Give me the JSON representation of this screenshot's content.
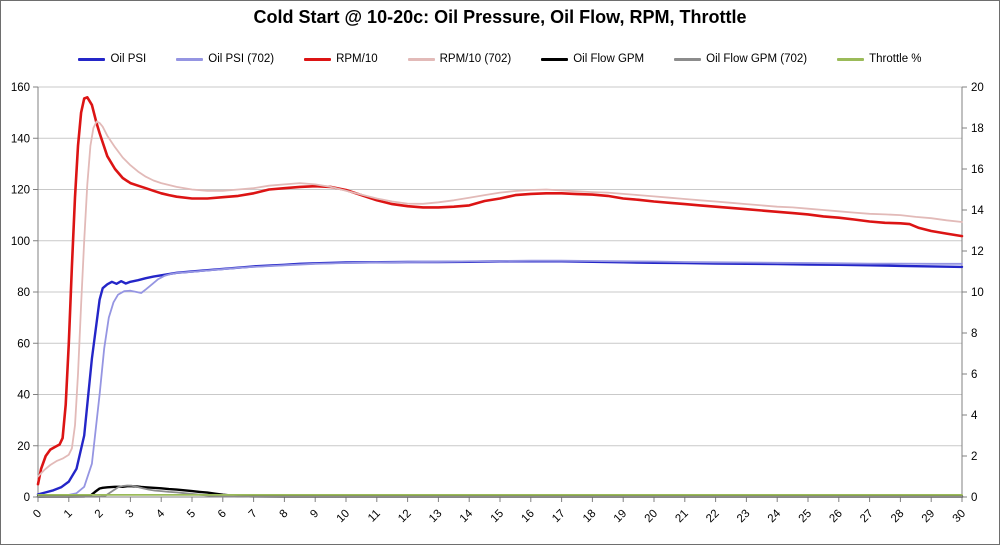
{
  "title": "Cold Start @ 10-20c: Oil Pressure, Oil Flow, RPM, Throttle",
  "colors": {
    "background": "#ffffff",
    "border": "#6e6e6e",
    "grid": "#c9c9c9",
    "axis": "#808080",
    "text": "#000000"
  },
  "chart_data": {
    "type": "line",
    "title": "Cold Start @ 10-20c: Oil Pressure, Oil Flow, RPM, Throttle",
    "legend_position": "top",
    "grid": true,
    "axes": {
      "x": {
        "min": 0,
        "max": 30,
        "step": 1,
        "label_rotation": -45
      },
      "y_left": {
        "min": 0,
        "max": 160,
        "step": 20
      },
      "y_right": {
        "min": 0,
        "max": 20,
        "step": 2
      }
    },
    "series": [
      {
        "name": "Oil PSI",
        "color": "#2426c8",
        "axis": "left",
        "width": 2.4,
        "x": [
          0,
          0.25,
          0.5,
          0.75,
          1,
          1.25,
          1.5,
          1.75,
          2,
          2.1,
          2.25,
          2.4,
          2.55,
          2.7,
          2.85,
          3,
          3.25,
          3.5,
          3.75,
          4,
          4.5,
          5,
          5.5,
          6,
          6.5,
          7,
          7.5,
          8,
          8.5,
          9,
          10,
          11,
          12,
          13,
          14,
          15,
          16,
          17,
          18,
          19,
          20,
          21,
          22,
          23,
          24,
          25,
          26,
          27,
          28,
          29,
          30
        ],
        "y": [
          1,
          1.8,
          2.6,
          3.8,
          6,
          11,
          24,
          54,
          77,
          81.5,
          83,
          84,
          83.2,
          84.2,
          83.3,
          84,
          84.6,
          85.4,
          86,
          86.5,
          87.5,
          88,
          88.5,
          89,
          89.5,
          90,
          90.3,
          90.6,
          91,
          91.2,
          91.5,
          91.6,
          91.7,
          91.7,
          91.8,
          92,
          92,
          92,
          91.8,
          91.6,
          91.4,
          91.3,
          91.1,
          91,
          90.9,
          90.7,
          90.6,
          90.4,
          90.2,
          90,
          89.8
        ]
      },
      {
        "name": "Oil PSI (702)",
        "color": "#9595e2",
        "axis": "left",
        "width": 1.8,
        "x": [
          0,
          0.5,
          1,
          1.25,
          1.5,
          1.75,
          2,
          2.15,
          2.3,
          2.45,
          2.6,
          2.8,
          3,
          3.2,
          3.35,
          3.5,
          3.7,
          3.9,
          4.1,
          4.3,
          4.5,
          5,
          5.5,
          6,
          6.5,
          7,
          8,
          9,
          10,
          11,
          12,
          13,
          14,
          15,
          16,
          17,
          18,
          19,
          20,
          21,
          22,
          23,
          24,
          25,
          26,
          27,
          28,
          29,
          30
        ],
        "y": [
          0,
          0.3,
          0.8,
          1.5,
          4,
          13,
          40,
          58,
          70,
          76,
          79,
          80.3,
          80.5,
          80,
          79.6,
          81,
          83,
          85,
          86.3,
          87,
          87.4,
          87.9,
          88.4,
          88.9,
          89.4,
          89.8,
          90.4,
          91,
          91.3,
          91.5,
          91.7,
          91.8,
          92,
          92.1,
          92.2,
          92.2,
          92.1,
          92,
          91.9,
          91.7,
          91.6,
          91.5,
          91.4,
          91.3,
          91.2,
          91.1,
          91.1,
          91,
          91
        ]
      },
      {
        "name": "RPM/10",
        "color": "#dc1414",
        "axis": "left",
        "width": 2.6,
        "x": [
          0,
          0.1,
          0.25,
          0.4,
          0.55,
          0.7,
          0.8,
          0.9,
          1,
          1.1,
          1.2,
          1.3,
          1.4,
          1.5,
          1.6,
          1.75,
          1.9,
          2,
          2.25,
          2.5,
          2.75,
          3,
          3.25,
          3.5,
          3.75,
          4,
          4.25,
          4.5,
          5,
          5.5,
          6,
          6.5,
          7,
          7.5,
          8,
          8.5,
          9,
          9.5,
          10,
          10.5,
          11,
          11.5,
          12,
          12.5,
          13,
          13.5,
          14,
          14.5,
          15,
          15.5,
          16,
          16.5,
          17,
          17.5,
          18,
          18.5,
          19,
          19.5,
          20,
          20.5,
          21,
          21.5,
          22,
          22.5,
          23,
          23.5,
          24,
          24.5,
          25,
          25.5,
          26,
          26.5,
          27,
          27.5,
          28,
          28.3,
          28.6,
          29,
          29.5,
          30
        ],
        "y": [
          5,
          11,
          16,
          18.5,
          19.5,
          20.5,
          23,
          36,
          60,
          90,
          117,
          137,
          150,
          155.5,
          156,
          153,
          146,
          142,
          133,
          128,
          124.5,
          122.5,
          121.5,
          120.5,
          119.5,
          118.5,
          117.8,
          117.2,
          116.5,
          116.5,
          117,
          117.5,
          118.5,
          120,
          120.5,
          121,
          121.3,
          121,
          119.8,
          117.8,
          115.8,
          114.3,
          113.5,
          113,
          113,
          113.3,
          113.8,
          115.5,
          116.5,
          117.8,
          118.3,
          118.5,
          118.5,
          118.2,
          118,
          117.5,
          116.5,
          116,
          115.3,
          114.8,
          114.3,
          113.8,
          113.3,
          112.8,
          112.3,
          111.8,
          111.3,
          110.8,
          110.3,
          109.5,
          109,
          108.3,
          107.5,
          107,
          106.8,
          106.5,
          105,
          103.8,
          102.8,
          101.8
        ]
      },
      {
        "name": "RPM/10 (702)",
        "color": "#e2bab8",
        "axis": "left",
        "width": 1.8,
        "x": [
          0,
          0.2,
          0.4,
          0.6,
          0.8,
          1,
          1.1,
          1.2,
          1.3,
          1.4,
          1.5,
          1.6,
          1.7,
          1.8,
          1.9,
          2,
          2.1,
          2.25,
          2.5,
          2.75,
          3,
          3.25,
          3.5,
          3.75,
          4,
          4.5,
          5,
          5.5,
          6,
          6.5,
          7,
          7.5,
          8,
          8.5,
          9,
          9.5,
          10,
          10.5,
          11,
          11.5,
          12,
          12.5,
          13,
          13.5,
          14,
          14.5,
          15,
          15.5,
          16,
          16.5,
          17,
          17.5,
          18,
          18.5,
          19,
          19.5,
          20,
          20.5,
          21,
          21.5,
          22,
          22.5,
          23,
          23.5,
          24,
          24.5,
          25,
          25.5,
          26,
          26.5,
          27,
          27.5,
          28,
          28.5,
          29,
          29.5,
          30
        ],
        "y": [
          8,
          10.5,
          12.5,
          14,
          15,
          16.5,
          19,
          28,
          48,
          75,
          100,
          122,
          137,
          144,
          146.5,
          146,
          144.5,
          141,
          136.5,
          132.5,
          129.5,
          127,
          125,
          123.5,
          122.5,
          121,
          120,
          119.5,
          119.5,
          120,
          120.5,
          121.5,
          122,
          122.5,
          122,
          121,
          119.5,
          118,
          116.5,
          115.3,
          114.5,
          114.4,
          115,
          115.8,
          116.8,
          117.8,
          118.8,
          119.4,
          119.8,
          120,
          119.6,
          119.3,
          119,
          118.8,
          118.3,
          117.8,
          117.3,
          116.8,
          116.3,
          115.8,
          115.3,
          114.8,
          114.3,
          113.8,
          113.3,
          113,
          112.5,
          112,
          111.5,
          111,
          110.5,
          110.3,
          110,
          109.3,
          108.8,
          108,
          107.3
        ]
      },
      {
        "name": "Oil Flow GPM",
        "color": "#000000",
        "axis": "left",
        "width": 2.4,
        "x": [
          0,
          1,
          1.5,
          1.7,
          1.85,
          2,
          2.1,
          2.25,
          2.5,
          2.75,
          2.9,
          3.05,
          3.2,
          3.35,
          3.5,
          3.75,
          4,
          4.25,
          4.5,
          4.75,
          5,
          5.25,
          5.5,
          5.75,
          6,
          6.25,
          6.5,
          7,
          8,
          10,
          12,
          15,
          20,
          25,
          30
        ],
        "y": [
          0.2,
          0.2,
          0.25,
          0.5,
          2,
          3.3,
          3.6,
          3.8,
          4,
          4,
          4.2,
          4.2,
          4.1,
          3.9,
          3.8,
          3.6,
          3.4,
          3.1,
          2.9,
          2.6,
          2.3,
          2,
          1.7,
          1.3,
          0.9,
          0.6,
          0.4,
          0.25,
          0.2,
          0.15,
          0.15,
          0.15,
          0.15,
          0.15,
          0.15
        ]
      },
      {
        "name": "Oil Flow GPM (702)",
        "color": "#8c8c8c",
        "axis": "left",
        "width": 1.8,
        "x": [
          0,
          2,
          2.2,
          2.4,
          2.6,
          2.75,
          2.9,
          3.05,
          3.2,
          3.4,
          3.6,
          3.8,
          4,
          4.25,
          4.5,
          4.75,
          5,
          5.25,
          5.5,
          5.75,
          6,
          6.5,
          7,
          10,
          15,
          20,
          25,
          30
        ],
        "y": [
          0.1,
          0.1,
          0.6,
          2.2,
          3.8,
          4.3,
          4.5,
          4.4,
          4,
          3.4,
          2.9,
          2.5,
          2.3,
          2,
          1.8,
          1.5,
          1.2,
          0.9,
          0.6,
          0.4,
          0.3,
          0.2,
          0.15,
          0.1,
          0.1,
          0.1,
          0.1,
          0.1
        ]
      },
      {
        "name": "Throttle %",
        "color": "#9bbb59",
        "axis": "right",
        "width": 1.8,
        "x": [
          0,
          30
        ],
        "y": [
          0.1,
          0.1
        ]
      }
    ]
  }
}
